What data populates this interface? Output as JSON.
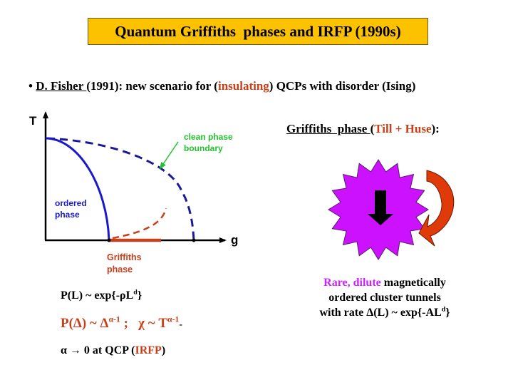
{
  "title": "Quantum Griffiths  phases and IRFP (1990s)",
  "bullet": {
    "marker": "•",
    "author": "D. Fisher ",
    "text_before": "(1991): new scenario for (",
    "highlight": "insulating",
    "text_after": ") QCPs with disorder (Ising)"
  },
  "diagram": {
    "y_axis_label": "T",
    "x_axis_label": "g",
    "clean_label_line1": "clean phase",
    "clean_label_line2": "boundary",
    "ordered_label_line1": "ordered",
    "ordered_label_line2": "phase",
    "griffiths_label_line1": "Griffiths",
    "griffiths_label_line2": "phase",
    "colors": {
      "axis": "#000000",
      "ordered_boundary": "#1a1acc",
      "clean_boundary": "#1a1a99",
      "griffiths": "#c8401a",
      "annotation_arrow": "#22c22e"
    }
  },
  "equations": {
    "eq1_main": "P(L) ~ exp{-ρL",
    "eq1_sup": "d",
    "eq1_end": "}",
    "eq2_a": "P(Δ) ~ Δ",
    "eq2_a_sup": "α-1",
    "eq2_sep": " ;   χ ~ T",
    "eq2_b_sup": "α-1",
    "eq2_trail": "-",
    "eq3_main": "α → 0 at QCP (",
    "eq3_highlight": "IRFP",
    "eq3_end": ")"
  },
  "griffiths_heading": {
    "label": "Griffiths  phase ",
    "open": "(",
    "authors": "Till + Huse",
    "close": "):"
  },
  "illustration": {
    "star_color": "#cc11ff",
    "arrow_color": "#000000",
    "curved_arrow_colors": [
      "#cc3300",
      "#ff4411"
    ]
  },
  "description": {
    "highlight": "Rare, dilute",
    "line1_rest": " magnetically",
    "line2": "ordered cluster tunnels",
    "line3_main": "with rate Δ(L) ~ exp{-AL",
    "line3_sup": "d",
    "line3_end": "}"
  }
}
